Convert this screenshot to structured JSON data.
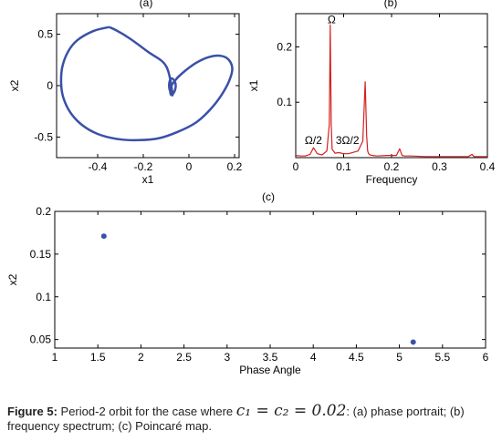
{
  "figure": {
    "caption": {
      "label": "Figure 5:",
      "text_before": "Period-2 orbit for the case where",
      "equation": "c₁ = c₂ = 0.02",
      "text_after": ": (a) phase portrait; (b) frequency spectrum; (c) Poincaré map."
    }
  },
  "chart_data": [
    {
      "id": "a",
      "panel_label": "(a)",
      "type": "line",
      "description_series_color": "#3a50a8",
      "xlabel": "x1",
      "ylabel": "x2",
      "xlim": [
        -0.58,
        0.22
      ],
      "ylim": [
        -0.7,
        0.7
      ],
      "xticks": [
        -0.4,
        -0.2,
        0,
        0.2
      ],
      "xtick_labels": [
        "-0.4",
        "-0.2",
        "0",
        "0.2"
      ],
      "yticks": [
        -0.5,
        0,
        0.5
      ],
      "ytick_labels": [
        "-0.5",
        "0",
        "0.5"
      ],
      "grid": false,
      "series": [
        {
          "color": "#3a50a8",
          "x": [
            -0.35,
            -0.42,
            -0.49,
            -0.53,
            -0.555,
            -0.56,
            -0.55,
            -0.52,
            -0.47,
            -0.4,
            -0.31,
            -0.22,
            -0.13,
            -0.05,
            0.03,
            0.09,
            0.14,
            0.175,
            0.19,
            0.175,
            0.14,
            0.09,
            0.03,
            -0.03,
            -0.065,
            -0.08,
            -0.082,
            -0.078,
            -0.07,
            -0.062,
            -0.058,
            -0.06,
            -0.068,
            -0.078,
            -0.085,
            -0.087,
            -0.083,
            -0.072,
            -0.1,
            -0.18,
            -0.26,
            -0.32,
            -0.35
          ],
          "y": [
            0.57,
            0.53,
            0.44,
            0.33,
            0.18,
            0.02,
            -0.12,
            -0.26,
            -0.38,
            -0.47,
            -0.52,
            -0.53,
            -0.51,
            -0.45,
            -0.36,
            -0.24,
            -0.1,
            0.04,
            0.16,
            0.25,
            0.29,
            0.28,
            0.22,
            0.12,
            0.04,
            -0.02,
            -0.06,
            -0.09,
            -0.08,
            -0.05,
            -0.01,
            0.03,
            0.06,
            0.07,
            0.04,
            0.0,
            -0.05,
            -0.08,
            0.19,
            0.33,
            0.46,
            0.54,
            0.57
          ]
        }
      ]
    },
    {
      "id": "b",
      "panel_label": "(b)",
      "type": "line",
      "xlabel": "Frequency",
      "ylabel": "x1",
      "xlim": [
        0,
        0.4
      ],
      "ylim": [
        0,
        0.26
      ],
      "xticks": [
        0,
        0.1,
        0.2,
        0.3,
        0.4
      ],
      "xtick_labels": [
        "0",
        "0.1",
        "0.2",
        "0.3",
        "0.4"
      ],
      "yticks": [
        0.1,
        0.2
      ],
      "ytick_labels": [
        "0.1",
        "0.2"
      ],
      "grid": false,
      "series": [
        {
          "color": "#d42020",
          "x": [
            0,
            0.01,
            0.02,
            0.03,
            0.037,
            0.045,
            0.055,
            0.065,
            0.07,
            0.072,
            0.074,
            0.076,
            0.078,
            0.082,
            0.09,
            0.1,
            0.11,
            0.13,
            0.14,
            0.145,
            0.148,
            0.15,
            0.152,
            0.155,
            0.16,
            0.17,
            0.19,
            0.21,
            0.217,
            0.222,
            0.227,
            0.24,
            0.27,
            0.3,
            0.33,
            0.36,
            0.368,
            0.372,
            0.38,
            0.4
          ],
          "y": [
            0.004,
            0.003,
            0.003,
            0.006,
            0.018,
            0.007,
            0.005,
            0.012,
            0.06,
            0.24,
            0.06,
            0.015,
            0.013,
            0.008,
            0.009,
            0.007,
            0.007,
            0.012,
            0.03,
            0.137,
            0.04,
            0.012,
            0.007,
            0.005,
            0.004,
            0.003,
            0.004,
            0.004,
            0.016,
            0.004,
            0.003,
            0.003,
            0.002,
            0.002,
            0.002,
            0.002,
            0.006,
            0.002,
            0.002,
            0.002
          ]
        }
      ],
      "annotations": [
        {
          "text": "Ω",
          "x": 0.075,
          "y": 0.243
        },
        {
          "text": "Ω/2",
          "x": 0.037,
          "y": 0.025
        },
        {
          "text": "3Ω/2",
          "x": 0.108,
          "y": 0.025
        }
      ]
    },
    {
      "id": "c",
      "panel_label": "(c)",
      "type": "scatter",
      "xlabel": "Phase Angle",
      "ylabel": "x2",
      "xlim": [
        1,
        6
      ],
      "ylim": [
        0.04,
        0.2
      ],
      "xticks": [
        1,
        1.5,
        2,
        2.5,
        3,
        3.5,
        4,
        4.5,
        5,
        5.5,
        6
      ],
      "xtick_labels": [
        "1",
        "1.5",
        "2",
        "2.5",
        "3",
        "3.5",
        "4",
        "4.5",
        "5",
        "5.5",
        "6"
      ],
      "yticks": [
        0.05,
        0.1,
        0.15,
        0.2
      ],
      "ytick_labels": [
        "0.05",
        "0.1",
        "0.15",
        "0.2"
      ],
      "grid": false,
      "series": [
        {
          "color": "#3a50a8",
          "x": [
            1.57,
            5.16
          ],
          "y": [
            0.171,
            0.047
          ]
        }
      ]
    }
  ]
}
